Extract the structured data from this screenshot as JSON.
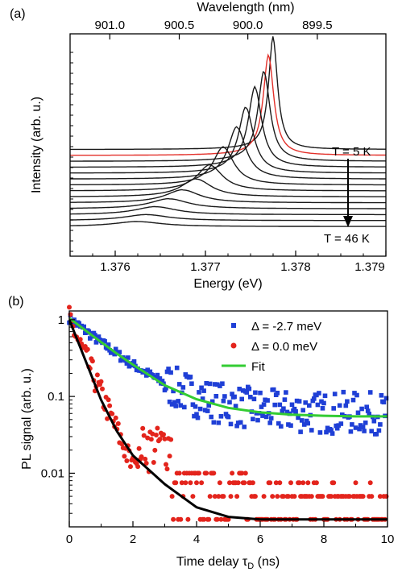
{
  "chart_data": [
    {
      "panel_label": "(a)",
      "type": "line",
      "top_axis": {
        "title": "Wavelength (nm)",
        "ticks": [
          {
            "label": "901.0",
            "energy": 1.37594
          },
          {
            "label": "900.5",
            "energy": 1.37671
          },
          {
            "label": "900.0",
            "energy": 1.37747
          },
          {
            "label": "899.5",
            "energy": 1.37824
          }
        ]
      },
      "xlabel": "Energy (eV)",
      "ylabel": "Intensity (arb. u.)",
      "xlim": [
        1.3755,
        1.379
      ],
      "xticks": [
        {
          "value": 1.376,
          "label": "1.376"
        },
        {
          "value": 1.377,
          "label": "1.377"
        },
        {
          "value": 1.378,
          "label": "1.378"
        },
        {
          "value": 1.379,
          "label": "1.379"
        }
      ],
      "annotations": {
        "start": "T = 5 K",
        "end": "T = 46 K"
      },
      "colors": {
        "spectra": "#1a1a1a",
        "highlight": "#e3302a"
      },
      "series": [
        {
          "baseline": 10.8,
          "peak_energy": 1.37775,
          "peak_height": 11.2,
          "width": 6e-05,
          "color": "#1a1a1a"
        },
        {
          "baseline": 10.2,
          "peak_energy": 1.3777,
          "peak_height": 10.0,
          "width": 7e-05,
          "color": "#e3302a"
        },
        {
          "baseline": 9.6,
          "peak_energy": 1.37765,
          "peak_height": 9.0,
          "width": 8e-05,
          "color": "#1a1a1a"
        },
        {
          "baseline": 9.0,
          "peak_energy": 1.37755,
          "peak_height": 8.0,
          "width": 9e-05,
          "color": "#1a1a1a"
        },
        {
          "baseline": 8.4,
          "peak_energy": 1.37745,
          "peak_height": 6.6,
          "width": 0.0001,
          "color": "#1a1a1a"
        },
        {
          "baseline": 7.8,
          "peak_energy": 1.37735,
          "peak_height": 5.2,
          "width": 0.00012,
          "color": "#1a1a1a"
        },
        {
          "baseline": 7.2,
          "peak_energy": 1.3772,
          "peak_height": 3.8,
          "width": 0.00014,
          "color": "#1a1a1a"
        },
        {
          "baseline": 6.6,
          "peak_energy": 1.37705,
          "peak_height": 2.6,
          "width": 0.00017,
          "color": "#1a1a1a"
        },
        {
          "baseline": 6.0,
          "peak_energy": 1.3769,
          "peak_height": 1.8,
          "width": 0.0002,
          "color": "#1a1a1a"
        },
        {
          "baseline": 5.4,
          "peak_energy": 1.37675,
          "peak_height": 1.3,
          "width": 0.00023,
          "color": "#1a1a1a"
        },
        {
          "baseline": 4.8,
          "peak_energy": 1.3766,
          "peak_height": 1.0,
          "width": 0.00026,
          "color": "#1a1a1a"
        },
        {
          "baseline": 4.2,
          "peak_energy": 1.37645,
          "peak_height": 0.8,
          "width": 0.00028,
          "color": "#1a1a1a"
        },
        {
          "baseline": 3.6,
          "peak_energy": 1.37635,
          "peak_height": 0.6,
          "width": 0.0003,
          "color": "#1a1a1a"
        },
        {
          "baseline": 3.0,
          "peak_energy": 1.37625,
          "peak_height": 0.5,
          "width": 0.00032,
          "color": "#1a1a1a"
        }
      ]
    },
    {
      "panel_label": "(b)",
      "type": "scatter",
      "xlabel": "Time delay τD (ns)",
      "ylabel": "PL signal (arb. u.)",
      "xlim": [
        0,
        10
      ],
      "ylim": [
        0.002,
        1.3
      ],
      "yscale": "log",
      "xticks": [
        0,
        2,
        4,
        6,
        8,
        10
      ],
      "yticks": [
        {
          "value": 1,
          "label": "1"
        },
        {
          "value": 0.1,
          "label": "0.1"
        },
        {
          "value": 0.01,
          "label": "0.01"
        }
      ],
      "legend": {
        "position": "top-right"
      },
      "series": [
        {
          "name": "Δ = -2.7 meV",
          "marker": "square",
          "color": "#1f3fd6",
          "decay_ns": 1.25,
          "floor": 0.06,
          "scatter_points": 260
        },
        {
          "name": "Δ = 0.0 meV",
          "marker": "circle",
          "color": "#e3241c",
          "decay_ns": 0.45,
          "floor": 0.0025,
          "scatter_points": 260
        },
        {
          "name": "Fit",
          "marker": "line",
          "color": "#33cc33",
          "x": [
            0,
            0.5,
            1,
            1.5,
            2,
            3,
            4,
            5,
            6,
            7,
            8,
            9,
            10
          ],
          "y": [
            1.05,
            0.73,
            0.51,
            0.36,
            0.26,
            0.14,
            0.092,
            0.071,
            0.062,
            0.058,
            0.056,
            0.055,
            0.055
          ]
        },
        {
          "name": "",
          "marker": "line",
          "color": "#000000",
          "x": [
            0,
            0.5,
            1,
            1.5,
            2,
            3,
            4,
            5,
            6,
            7,
            8,
            9,
            10
          ],
          "y": [
            1.0,
            0.3,
            0.09,
            0.035,
            0.017,
            0.0072,
            0.0036,
            0.0027,
            0.0025,
            0.0025,
            0.0025,
            0.0025,
            0.0025
          ]
        }
      ]
    }
  ]
}
